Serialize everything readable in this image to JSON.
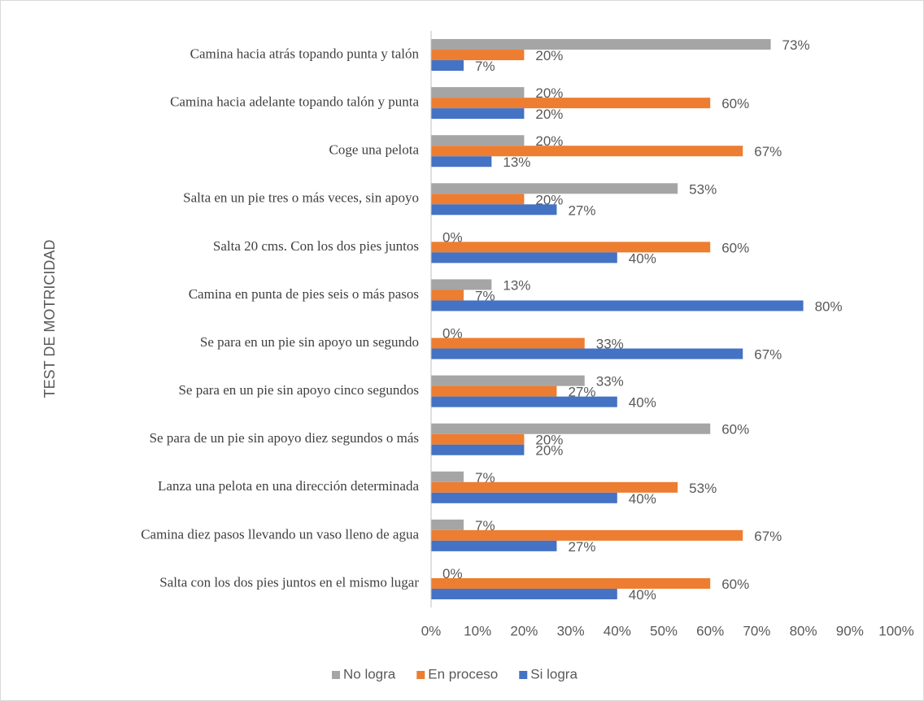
{
  "chart_data": {
    "type": "bar",
    "orientation": "horizontal",
    "y_axis_label": "TEST DE MOTRICIDAD",
    "categories": [
      "Camina hacia atrás topando punta y talón",
      "Camina hacia adelante topando talón y punta",
      "Coge una pelota",
      "Salta en un pie tres o más veces, sin apoyo",
      "Salta 20 cms. Con los dos pies juntos",
      "Camina en punta de pies seis o más pasos",
      "Se para en un pie sin apoyo un segundo",
      "Se para en un pie sin apoyo cinco segundos",
      "Se para de un pie sin apoyo diez segundos o más",
      "Lanza una pelota en una dirección determinada",
      "Camina diez pasos llevando un vaso lleno de agua",
      "Salta con los dos pies juntos en el mismo lugar"
    ],
    "series": [
      {
        "name": "No logra",
        "color": "#a5a5a5",
        "values": [
          73,
          20,
          20,
          53,
          0,
          13,
          0,
          33,
          60,
          7,
          7,
          0
        ],
        "value_labels": [
          "73%",
          "20%",
          "20%",
          "53%",
          "0%",
          "13%",
          "0%",
          "33%",
          "60%",
          "7%",
          "7%",
          "0%"
        ]
      },
      {
        "name": "En proceso",
        "color": "#ed7d31",
        "values": [
          20,
          60,
          67,
          20,
          60,
          7,
          33,
          27,
          20,
          53,
          67,
          60
        ],
        "value_labels": [
          "20%",
          "60%",
          "67%",
          "20%",
          "60%",
          "7%",
          "33%",
          "27%",
          "20%",
          "53%",
          "67%",
          "60%"
        ]
      },
      {
        "name": "Si logra",
        "color": "#4472c4",
        "values": [
          7,
          20,
          13,
          27,
          40,
          80,
          67,
          40,
          20,
          40,
          27,
          40
        ],
        "value_labels": [
          "7%",
          "20%",
          "13%",
          "27%",
          "40%",
          "80%",
          "67%",
          "40%",
          "20%",
          "40%",
          "27%",
          "40%"
        ]
      }
    ],
    "xlim": [
      0,
      100
    ],
    "xticks": [
      {
        "value": 0,
        "label": "0%"
      },
      {
        "value": 10,
        "label": "10%"
      },
      {
        "value": 20,
        "label": "20%"
      },
      {
        "value": 30,
        "label": "30%"
      },
      {
        "value": 40,
        "label": "40%"
      },
      {
        "value": 50,
        "label": "50%"
      },
      {
        "value": 60,
        "label": "60%"
      },
      {
        "value": 70,
        "label": "70%"
      },
      {
        "value": 80,
        "label": "80%"
      },
      {
        "value": 90,
        "label": "90%"
      },
      {
        "value": 100,
        "label": "100%"
      }
    ],
    "grid": false,
    "legend": "bottom"
  }
}
